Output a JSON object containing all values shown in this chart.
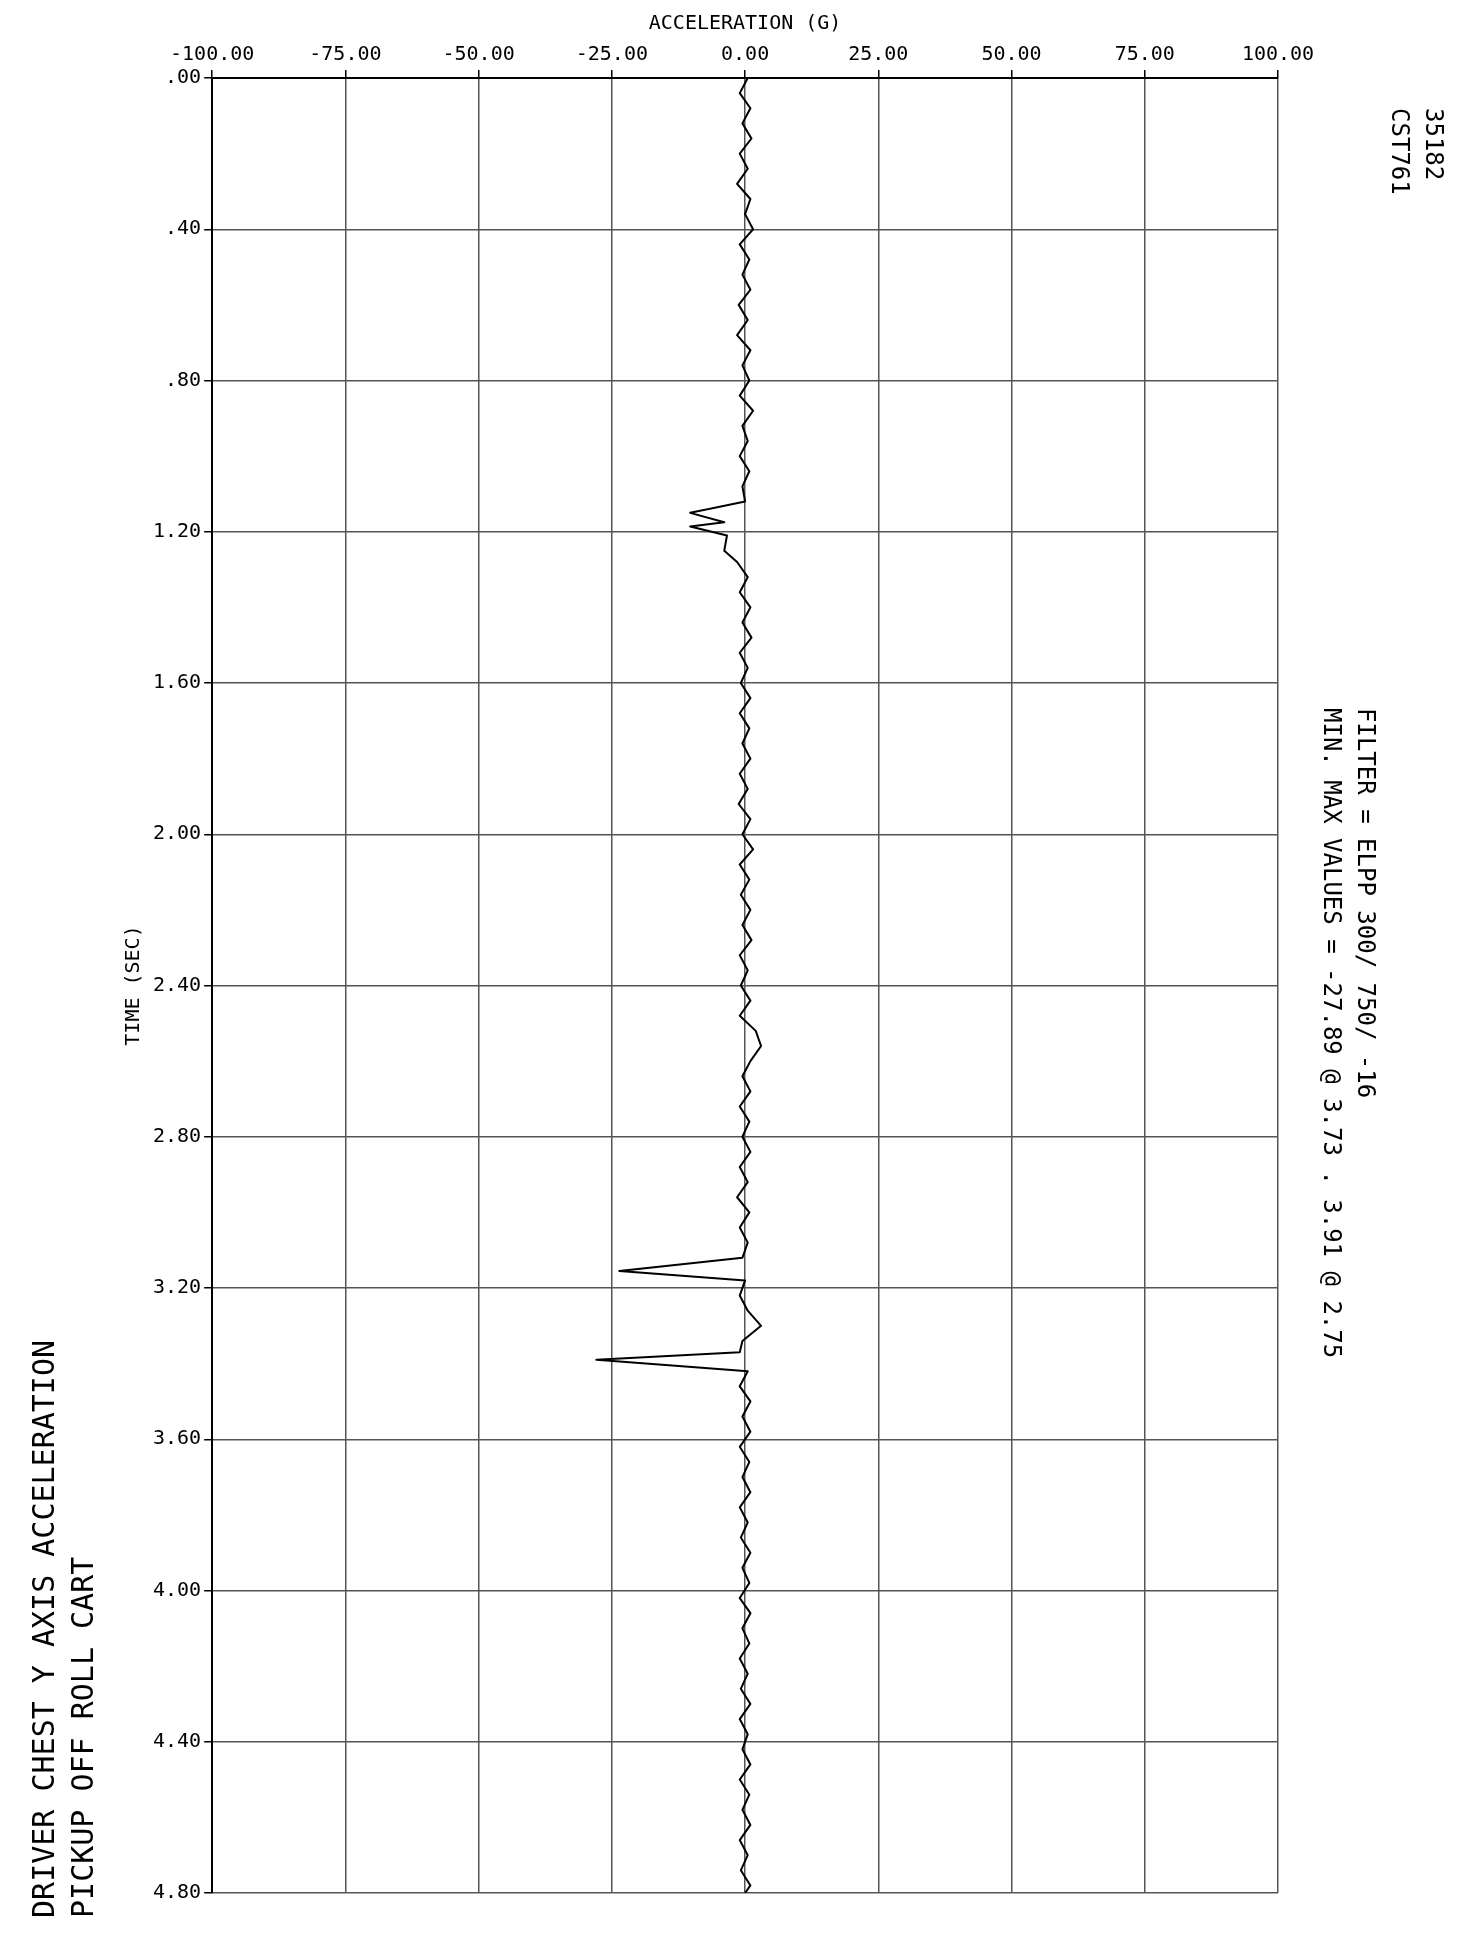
{
  "chart_data": {
    "type": "line",
    "orientation": "horizontal",
    "title": "PICKUP OFF ROLL CART",
    "subtitle": "DRIVER CHEST Y AXIS ACCELERATION",
    "xlabel": "ACCELERATION (G)",
    "ylabel": "TIME (SEC)",
    "annotations": [
      "35182",
      "CST761",
      "FILTER = ELPP 300/ 750/ -16",
      "MIN. MAX VALUES = -27.89 @ 3.73 . 3.91 @ 2.75"
    ],
    "x": [
      0,
      0.04,
      0.08,
      0.12,
      0.16,
      0.2,
      0.24,
      0.28,
      0.32,
      0.36,
      0.4,
      0.44,
      0.48,
      0.52,
      0.56,
      0.6,
      0.64,
      0.68,
      0.72,
      0.76,
      0.8,
      0.84,
      0.88,
      0.92,
      0.96,
      1,
      1.04,
      1.08,
      1.12,
      1.15,
      1.175,
      1.186,
      1.21,
      1.25,
      1.28,
      1.32,
      1.36,
      1.4,
      1.44,
      1.48,
      1.52,
      1.56,
      1.6,
      1.64,
      1.68,
      1.72,
      1.76,
      1.8,
      1.84,
      1.88,
      1.92,
      1.96,
      2,
      2.04,
      2.08,
      2.12,
      2.16,
      2.2,
      2.24,
      2.28,
      2.32,
      2.36,
      2.4,
      2.44,
      2.48,
      2.52,
      2.56,
      2.6,
      2.64,
      2.68,
      2.72,
      2.76,
      2.8,
      2.84,
      2.88,
      2.92,
      2.96,
      3,
      3.04,
      3.08,
      3.12,
      3.155,
      3.18,
      3.22,
      3.26,
      3.3,
      3.34,
      3.37,
      3.39,
      3.42,
      3.46,
      3.5,
      3.54,
      3.58,
      3.62,
      3.66,
      3.7,
      3.74,
      3.78,
      3.82,
      3.86,
      3.9,
      3.94,
      3.98,
      4.02,
      4.06,
      4.1,
      4.14,
      4.18,
      4.22,
      4.26,
      4.3,
      4.34,
      4.38,
      4.42,
      4.46,
      4.5,
      4.54,
      4.58,
      4.62,
      4.66,
      4.7,
      4.74,
      4.78,
      4.8
    ],
    "series": [
      {
        "color": "#000000",
        "values": [
          0.5,
          -1,
          1,
          -0.5,
          1.2,
          -1,
          0.5,
          -1.5,
          1,
          0,
          1.5,
          -1,
          0.8,
          -0.5,
          1,
          -1.2,
          0.5,
          -1.5,
          1,
          -0.5,
          0.8,
          -1,
          1.5,
          -0.5,
          0.5,
          -1,
          0.8,
          -0.5,
          0,
          -10.3,
          -3.9,
          -10.3,
          -3.4,
          -3.9,
          -1.5,
          0.5,
          -1,
          1,
          -0.5,
          1.2,
          -1,
          0.5,
          -0.8,
          1,
          -1,
          0.8,
          -0.5,
          1,
          -1,
          0.5,
          -1.2,
          1,
          -0.5,
          1.5,
          -1,
          0.8,
          -0.8,
          1,
          -0.5,
          1.2,
          -1,
          0.5,
          -0.8,
          1,
          -1,
          2,
          3,
          1,
          -0.5,
          1,
          -1,
          0.8,
          -0.5,
          1,
          -1,
          0.5,
          -1.5,
          0.8,
          -1,
          0.5,
          -0.5,
          -23.6,
          0,
          -1,
          0.5,
          3,
          -0.5,
          -1,
          -27.9,
          0.5,
          -1,
          1,
          -0.5,
          1,
          -1,
          0.8,
          -0.5,
          1,
          -1,
          0.5,
          -0.8,
          1,
          -0.5,
          0.8,
          -1,
          1,
          -0.5,
          0.8,
          -1,
          0.5,
          -0.8,
          1,
          -1,
          0.5,
          -0.5,
          1,
          -1,
          0.8,
          -0.5,
          1,
          -1,
          0.5,
          -0.8,
          1,
          0
        ]
      }
    ],
    "xlim": [
      -100,
      100
    ],
    "xticks": [
      {
        "value": -100,
        "label": "-100.00"
      },
      {
        "value": -75,
        "label": "-75.00"
      },
      {
        "value": -50,
        "label": "-50.00"
      },
      {
        "value": -25,
        "label": "-25.00"
      },
      {
        "value": 0,
        "label": "0.00"
      },
      {
        "value": 25,
        "label": "25.00"
      },
      {
        "value": 50,
        "label": "50.00"
      },
      {
        "value": 75,
        "label": "75.00"
      },
      {
        "value": 100,
        "label": "100.00"
      }
    ],
    "ylim": [
      4.8,
      0
    ],
    "yticks": [
      {
        "value": 0,
        "label": ".00"
      },
      {
        "value": 0.4,
        "label": ".40"
      },
      {
        "value": 0.8,
        "label": ".80"
      },
      {
        "value": 1.2,
        "label": "1.20"
      },
      {
        "value": 1.6,
        "label": "1.60"
      },
      {
        "value": 2,
        "label": "2.00"
      },
      {
        "value": 2.4,
        "label": "2.40"
      },
      {
        "value": 2.8,
        "label": "2.80"
      },
      {
        "value": 3.2,
        "label": "3.20"
      },
      {
        "value": 3.6,
        "label": "3.60"
      },
      {
        "value": 4,
        "label": "4.00"
      },
      {
        "value": 4.4,
        "label": "4.40"
      },
      {
        "value": 4.8,
        "label": "4.80"
      }
    ],
    "grid": true,
    "marker": "none",
    "line_style": "solid"
  }
}
